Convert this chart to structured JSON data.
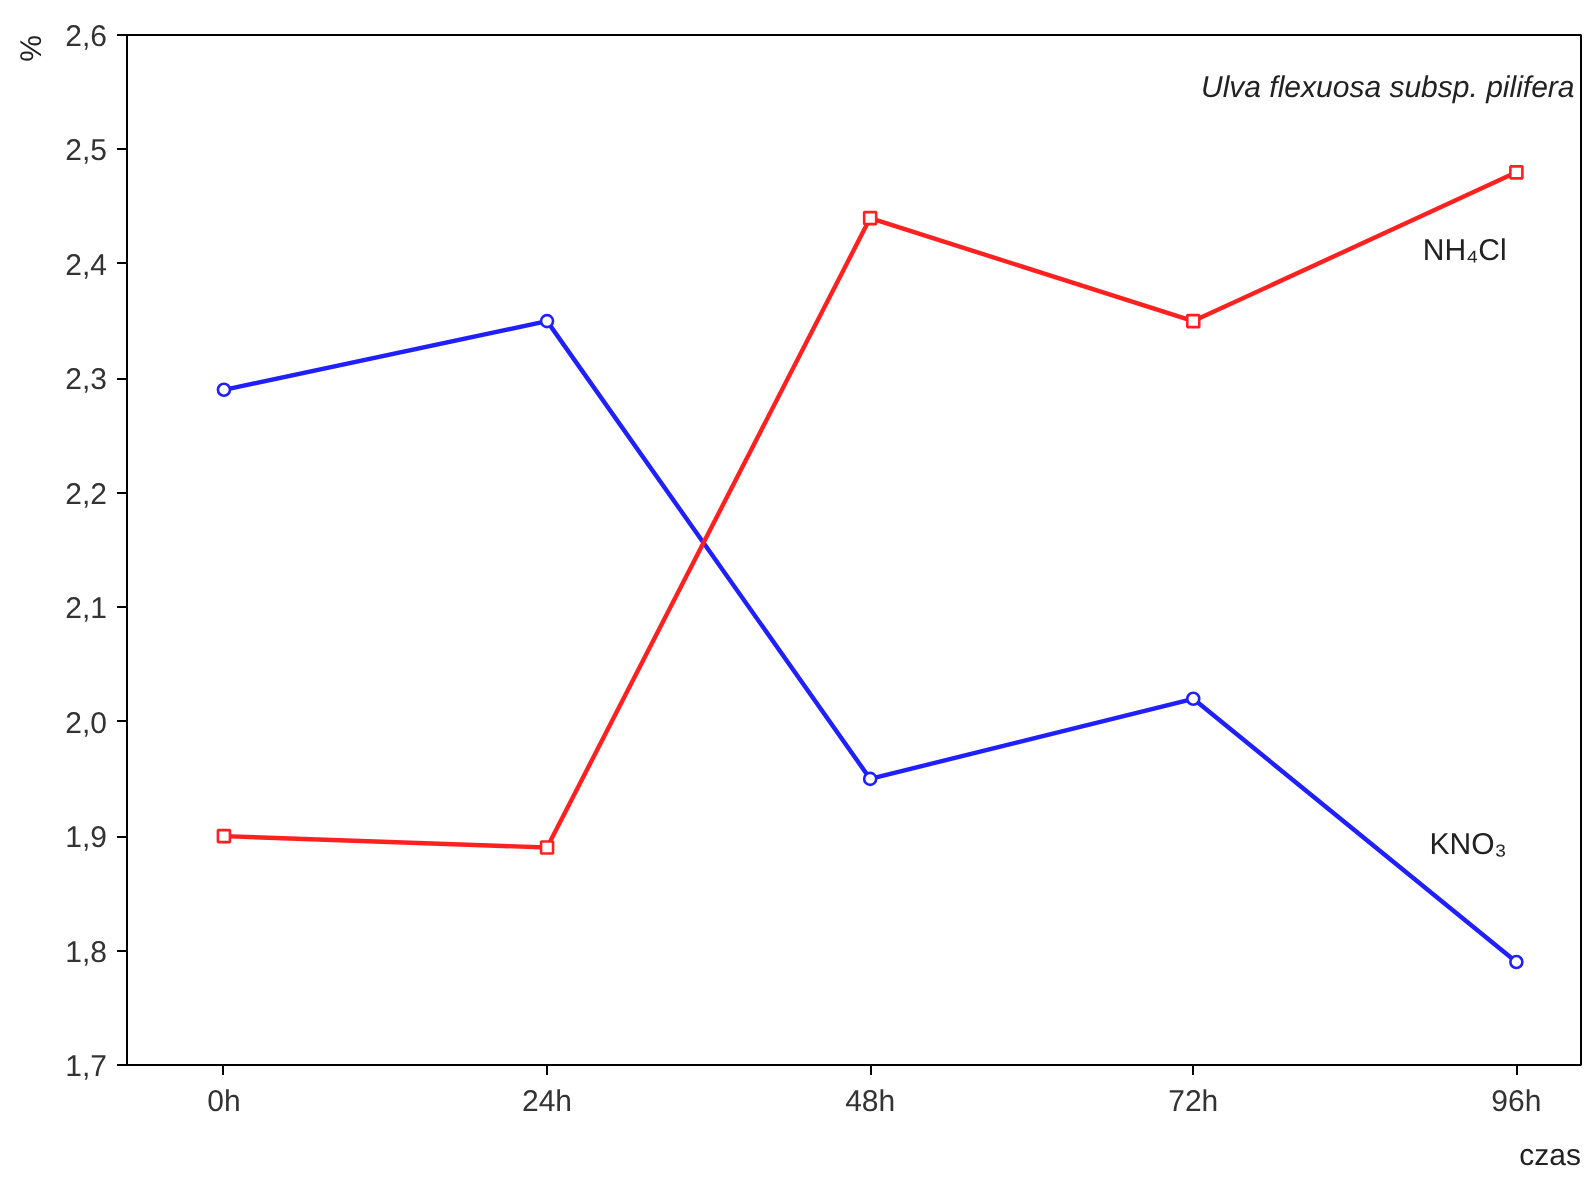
{
  "chart_data": {
    "type": "line",
    "title": "Ulva flexuosa subsp. pilifera",
    "xlabel": "czas",
    "ylabel": "%",
    "categories": [
      "0h",
      "24h",
      "48h",
      "72h",
      "96h"
    ],
    "series": [
      {
        "name": "KNO₃",
        "color": "#1f1fff",
        "marker": "circle",
        "values": [
          2.29,
          2.35,
          1.95,
          2.02,
          1.79
        ]
      },
      {
        "name": "NH₄Cl",
        "color": "#ff2020",
        "marker": "square",
        "values": [
          1.9,
          1.89,
          2.44,
          2.35,
          2.48
        ]
      }
    ],
    "ylim": [
      1.7,
      2.6
    ],
    "yticks": [
      {
        "value": 1.7,
        "label": "1,7"
      },
      {
        "value": 1.8,
        "label": "1,8"
      },
      {
        "value": 1.9,
        "label": "1,9"
      },
      {
        "value": 2.0,
        "label": "2,0"
      },
      {
        "value": 2.1,
        "label": "2,1"
      },
      {
        "value": 2.2,
        "label": "2,2"
      },
      {
        "value": 2.3,
        "label": "2,3"
      },
      {
        "value": 2.4,
        "label": "2,4"
      },
      {
        "value": 2.5,
        "label": "2,5"
      },
      {
        "value": 2.6,
        "label": "2,6"
      }
    ],
    "grid": false,
    "line_style": "solid"
  }
}
